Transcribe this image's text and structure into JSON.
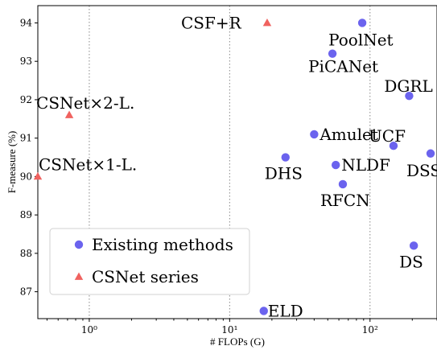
{
  "chart_data": {
    "type": "scatter",
    "title": "",
    "xlabel": "# FLOPs (G)",
    "ylabel": "F-measure (%)",
    "xscale": "log",
    "xlim": [
      0.43,
      300
    ],
    "ylim": [
      86.3,
      94.45
    ],
    "x_ticks": [
      {
        "value": 1,
        "label": "10⁰"
      },
      {
        "value": 10,
        "label": "10¹"
      },
      {
        "value": 100,
        "label": "10²"
      }
    ],
    "y_ticks": [
      87,
      88,
      89,
      90,
      91,
      92,
      93,
      94
    ],
    "grid": "vertical-dotted-at-major-x-ticks",
    "legend_position": "lower-left",
    "series": [
      {
        "name": "Existing methods",
        "marker": "circle",
        "color": "#6b63ee",
        "points": [
          {
            "label": "PoolNet",
            "x": 88,
            "y": 94.0
          },
          {
            "label": "PiCANet",
            "x": 54,
            "y": 93.2
          },
          {
            "label": "DGRL",
            "x": 190,
            "y": 92.1
          },
          {
            "label": "Amulet",
            "x": 40,
            "y": 91.1
          },
          {
            "label": "UCF",
            "x": 147,
            "y": 90.8
          },
          {
            "label": "DSS",
            "x": 270,
            "y": 90.6
          },
          {
            "label": "DHS",
            "x": 25,
            "y": 90.5
          },
          {
            "label": "NLDF",
            "x": 57,
            "y": 90.3
          },
          {
            "label": "RFCN",
            "x": 64,
            "y": 89.8
          },
          {
            "label": "DS",
            "x": 205,
            "y": 88.2
          },
          {
            "label": "ELD",
            "x": 17.5,
            "y": 86.5
          }
        ]
      },
      {
        "name": "CSNet series",
        "marker": "triangle",
        "color": "#f0625f",
        "points": [
          {
            "label": "CSF+R",
            "x": 18.5,
            "y": 94.0
          },
          {
            "label": "CSNet×2-L.",
            "x": 0.72,
            "y": 91.6
          },
          {
            "label": "CSNet×1-L.",
            "x": 0.43,
            "y": 90.0
          }
        ]
      }
    ]
  }
}
